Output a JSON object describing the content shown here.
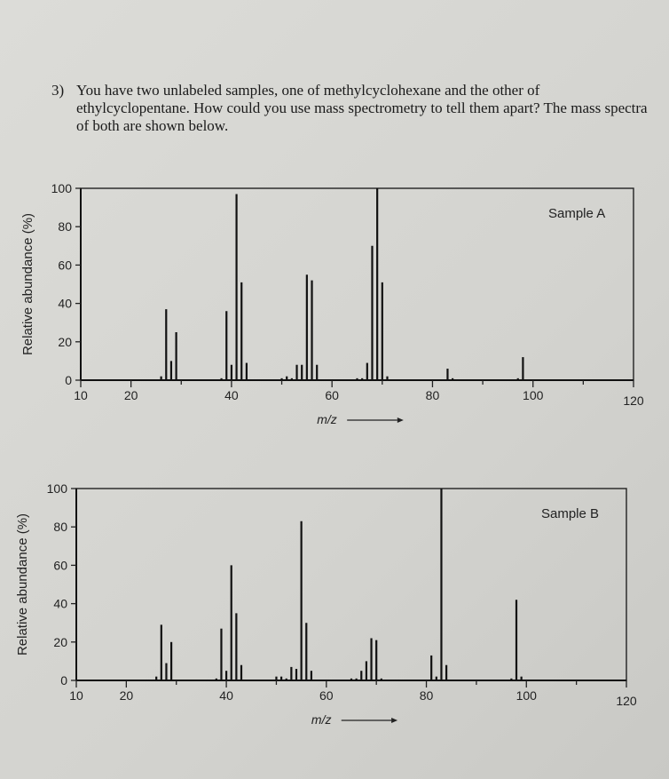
{
  "question": {
    "number": "3)",
    "text": "You have two unlabeled samples, one of methylcyclohexane and the other of ethylcyclopentane. How could you use mass spectrometry to tell them apart? The mass spectra of both are shown below."
  },
  "chart_data": [
    {
      "type": "bar",
      "title": "Sample A",
      "xlabel": "m/z",
      "ylabel": "Relative abundance (%)",
      "xlim": [
        10,
        120
      ],
      "ylim": [
        0,
        100
      ],
      "xticks": [
        10,
        20,
        40,
        60,
        80,
        100,
        120
      ],
      "yticks": [
        0,
        20,
        40,
        60,
        80,
        100
      ],
      "grid": false,
      "x": [
        26,
        27,
        28,
        29,
        38,
        39,
        40,
        41,
        42,
        43,
        50,
        51,
        52,
        53,
        54,
        55,
        56,
        57,
        65,
        66,
        67,
        68,
        69,
        70,
        71,
        83,
        84,
        97,
        98
      ],
      "values": [
        2,
        37,
        10,
        25,
        1,
        36,
        8,
        97,
        51,
        9,
        1,
        2,
        1,
        8,
        8,
        55,
        52,
        8,
        1,
        1,
        9,
        70,
        100,
        51,
        2,
        6,
        1,
        1,
        12
      ]
    },
    {
      "type": "bar",
      "title": "Sample B",
      "xlabel": "m/z",
      "ylabel": "Relative abundance (%)",
      "xlim": [
        10,
        120
      ],
      "ylim": [
        0,
        100
      ],
      "xticks": [
        10,
        20,
        40,
        60,
        80,
        100,
        120
      ],
      "yticks": [
        0,
        20,
        40,
        60,
        80,
        100
      ],
      "grid": false,
      "x": [
        26,
        27,
        28,
        29,
        38,
        39,
        40,
        41,
        42,
        43,
        50,
        51,
        52,
        53,
        54,
        55,
        56,
        57,
        65,
        66,
        67,
        68,
        69,
        70,
        71,
        81,
        82,
        83,
        84,
        97,
        98,
        99
      ],
      "values": [
        2,
        29,
        9,
        20,
        1,
        27,
        5,
        60,
        35,
        8,
        2,
        2,
        1,
        7,
        6,
        83,
        30,
        5,
        1,
        1,
        5,
        10,
        22,
        21,
        1,
        13,
        2,
        100,
        8,
        1,
        42,
        2
      ]
    }
  ]
}
